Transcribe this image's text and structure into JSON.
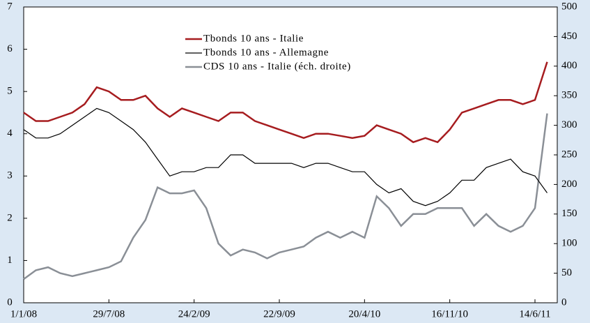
{
  "chart_data": {
    "type": "line",
    "categories": [
      "1/1/08",
      null,
      null,
      null,
      null,
      null,
      null,
      "29/7/08",
      null,
      null,
      null,
      null,
      null,
      null,
      "24/2/09",
      null,
      null,
      null,
      null,
      null,
      null,
      "22/9/09",
      null,
      null,
      null,
      null,
      null,
      null,
      "20/4/10",
      null,
      null,
      null,
      null,
      null,
      null,
      "16/11/10",
      null,
      null,
      null,
      null,
      null,
      null,
      "14/6/11",
      null
    ],
    "series": [
      {
        "name": "Tbonds 10 ans - Italie",
        "color": "#a61c1f",
        "axis": "y",
        "values": [
          4.5,
          4.3,
          4.3,
          4.4,
          4.5,
          4.7,
          5.1,
          5.0,
          4.8,
          4.8,
          4.9,
          4.6,
          4.4,
          4.6,
          4.5,
          4.4,
          4.3,
          4.5,
          4.5,
          4.3,
          4.2,
          4.1,
          4.0,
          3.9,
          4.0,
          4.0,
          3.95,
          3.9,
          3.95,
          4.2,
          4.1,
          4.0,
          3.8,
          3.9,
          3.8,
          4.1,
          4.5,
          4.6,
          4.7,
          4.8,
          4.8,
          4.7,
          4.8,
          5.7
        ]
      },
      {
        "name": "Tbonds 10 ans - Allemagne",
        "color": "#000000",
        "axis": "y",
        "values": [
          4.1,
          3.9,
          3.9,
          4.0,
          4.2,
          4.4,
          4.6,
          4.5,
          4.3,
          4.1,
          3.8,
          3.4,
          3.0,
          3.1,
          3.1,
          3.2,
          3.2,
          3.5,
          3.5,
          3.3,
          3.3,
          3.3,
          3.3,
          3.2,
          3.3,
          3.3,
          3.2,
          3.1,
          3.1,
          2.8,
          2.6,
          2.7,
          2.4,
          2.3,
          2.4,
          2.6,
          2.9,
          2.9,
          3.2,
          3.3,
          3.4,
          3.1,
          3.0,
          2.6
        ]
      },
      {
        "name": "CDS 10 ans - Italie (éch. droite)",
        "color": "#8a8f96",
        "axis": "y2",
        "values": [
          40,
          55,
          60,
          50,
          45,
          50,
          55,
          60,
          70,
          110,
          140,
          195,
          185,
          185,
          190,
          160,
          100,
          80,
          90,
          85,
          75,
          85,
          90,
          95,
          110,
          120,
          110,
          120,
          110,
          180,
          160,
          130,
          150,
          150,
          160,
          160,
          160,
          130,
          150,
          130,
          120,
          130,
          160,
          320
        ]
      }
    ],
    "ylim": [
      0,
      7
    ],
    "yticks": [
      0,
      1,
      2,
      3,
      4,
      5,
      6,
      7
    ],
    "y2lim": [
      0,
      500
    ],
    "y2ticks": [
      0,
      50,
      100,
      150,
      200,
      250,
      300,
      350,
      400,
      450,
      500
    ],
    "legend": "top"
  }
}
